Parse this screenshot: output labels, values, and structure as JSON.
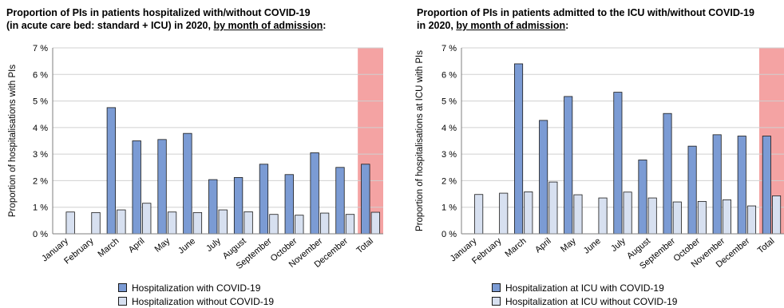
{
  "colors": {
    "with": "#7b9bd4",
    "without": "#d7e0f0",
    "total_band": "#f4a3a3",
    "grid": "#d0d0d0",
    "bar_edge": "#1a1a1a"
  },
  "chart1": {
    "title_line1": "Proportion of PIs in patients hospitalized with/without COVID-19",
    "title_line2_pre": "(in acute care bed: standard + ICU) in 2020, ",
    "title_line2_u": "by month of admission",
    "title_line2_post": ":",
    "ylabel": "Proportion of hospitalisations with PIs",
    "legend_with": "Hospitalization with COVID-19",
    "legend_without": "Hospitalization without COVID-19"
  },
  "chart2": {
    "title_line1": "Proportion of PIs in patients admitted to the ICU with/without COVID-19",
    "title_line2_pre": "in 2020, ",
    "title_line2_u": "by month of admission",
    "title_line2_post": ":",
    "ylabel": "Proportion of hospitalisations at ICU with PIs",
    "legend_with": "Hospitalization at ICU with COVID-19",
    "legend_without": "Hospitalization at ICU without COVID-19"
  },
  "chart_data": [
    {
      "type": "bar",
      "categories": [
        "January",
        "February",
        "March",
        "April",
        "May",
        "June",
        "July",
        "August",
        "September",
        "October",
        "November",
        "December",
        "Total"
      ],
      "series": [
        {
          "name": "Hospitalization with COVID-19",
          "values": [
            null,
            null,
            4.75,
            3.5,
            3.55,
            3.78,
            2.04,
            2.12,
            2.62,
            2.23,
            3.05,
            2.5,
            2.62
          ]
        },
        {
          "name": "Hospitalization without COVID-19",
          "values": [
            0.82,
            0.8,
            0.9,
            1.15,
            0.82,
            0.8,
            0.9,
            0.83,
            0.73,
            0.7,
            0.78,
            0.73,
            0.81
          ]
        }
      ],
      "yticks": [
        "0 %",
        "1 %",
        "2 %",
        "3 %",
        "4 %",
        "5 %",
        "6 %",
        "7 %"
      ],
      "ylim": [
        0,
        7
      ],
      "ylabel": "Proportion of hospitalisations with PIs",
      "highlight_category": "Total",
      "legend_position": "bottom"
    },
    {
      "type": "bar",
      "categories": [
        "January",
        "February",
        "March",
        "April",
        "May",
        "June",
        "July",
        "August",
        "September",
        "October",
        "November",
        "December",
        "Total"
      ],
      "series": [
        {
          "name": "Hospitalization at ICU with COVID-19",
          "values": [
            null,
            null,
            6.4,
            4.27,
            5.17,
            null,
            5.33,
            2.78,
            4.53,
            3.3,
            3.73,
            3.68,
            3.68
          ]
        },
        {
          "name": "Hospitalization at ICU without COVID-19",
          "values": [
            1.48,
            1.53,
            1.58,
            1.95,
            1.47,
            1.35,
            1.57,
            1.35,
            1.2,
            1.22,
            1.28,
            1.05,
            1.43
          ]
        }
      ],
      "yticks": [
        "0 %",
        "1 %",
        "2 %",
        "3 %",
        "4 %",
        "5 %",
        "6 %",
        "7 %"
      ],
      "ylim": [
        0,
        7
      ],
      "ylabel": "Proportion of hospitalisations at ICU with PIs",
      "highlight_category": "Total",
      "legend_position": "bottom"
    }
  ]
}
